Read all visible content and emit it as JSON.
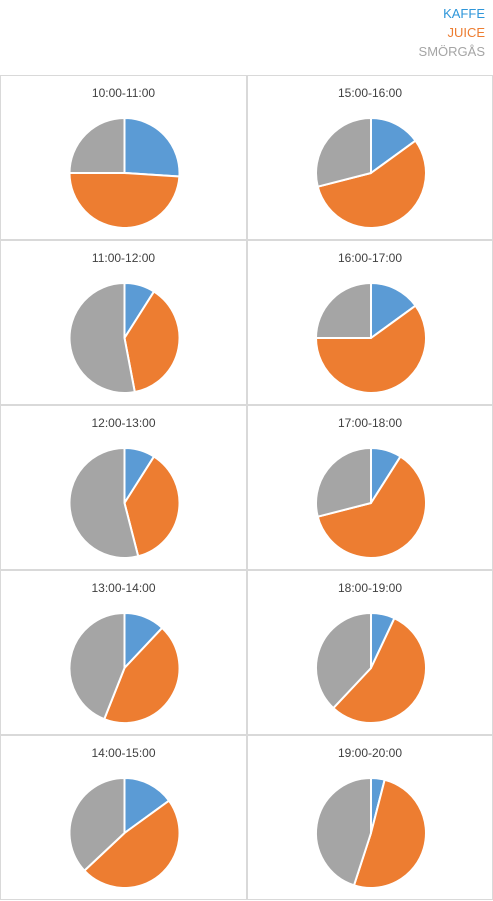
{
  "legend": {
    "items": [
      {
        "label": "KAFFE",
        "color": "#2e96d9"
      },
      {
        "label": "JUICE",
        "color": "#ed7d31"
      },
      {
        "label": "SMÖRGÅS",
        "color": "#a5a5a5"
      }
    ]
  },
  "colors": {
    "kaffe": "#5b9bd5",
    "juice": "#ed7d31",
    "smorgas": "#a5a5a5"
  },
  "chart_data": [
    {
      "type": "pie",
      "title": "10:00-11:00",
      "categories": [
        "KAFFE",
        "JUICE",
        "SMÖRGÅS"
      ],
      "values": [
        26,
        49,
        25
      ]
    },
    {
      "type": "pie",
      "title": "11:00-12:00",
      "categories": [
        "KAFFE",
        "JUICE",
        "SMÖRGÅS"
      ],
      "values": [
        9,
        38,
        53
      ]
    },
    {
      "type": "pie",
      "title": "12:00-13:00",
      "categories": [
        "KAFFE",
        "JUICE",
        "SMÖRGÅS"
      ],
      "values": [
        9,
        37,
        54
      ]
    },
    {
      "type": "pie",
      "title": "13:00-14:00",
      "categories": [
        "KAFFE",
        "JUICE",
        "SMÖRGÅS"
      ],
      "values": [
        12,
        44,
        44
      ]
    },
    {
      "type": "pie",
      "title": "14:00-15:00",
      "categories": [
        "KAFFE",
        "JUICE",
        "SMÖRGÅS"
      ],
      "values": [
        15,
        48,
        37
      ]
    },
    {
      "type": "pie",
      "title": "15:00-16:00",
      "categories": [
        "KAFFE",
        "JUICE",
        "SMÖRGÅS"
      ],
      "values": [
        15,
        56,
        29
      ]
    },
    {
      "type": "pie",
      "title": "16:00-17:00",
      "categories": [
        "KAFFE",
        "JUICE",
        "SMÖRGÅS"
      ],
      "values": [
        15,
        60,
        25
      ]
    },
    {
      "type": "pie",
      "title": "17:00-18:00",
      "categories": [
        "KAFFE",
        "JUICE",
        "SMÖRGÅS"
      ],
      "values": [
        9,
        62,
        29
      ]
    },
    {
      "type": "pie",
      "title": "18:00-19:00",
      "categories": [
        "KAFFE",
        "JUICE",
        "SMÖRGÅS"
      ],
      "values": [
        7,
        55,
        38
      ]
    },
    {
      "type": "pie",
      "title": "19:00-20:00",
      "categories": [
        "KAFFE",
        "JUICE",
        "SMÖRGÅS"
      ],
      "values": [
        4,
        51,
        45
      ]
    }
  ]
}
